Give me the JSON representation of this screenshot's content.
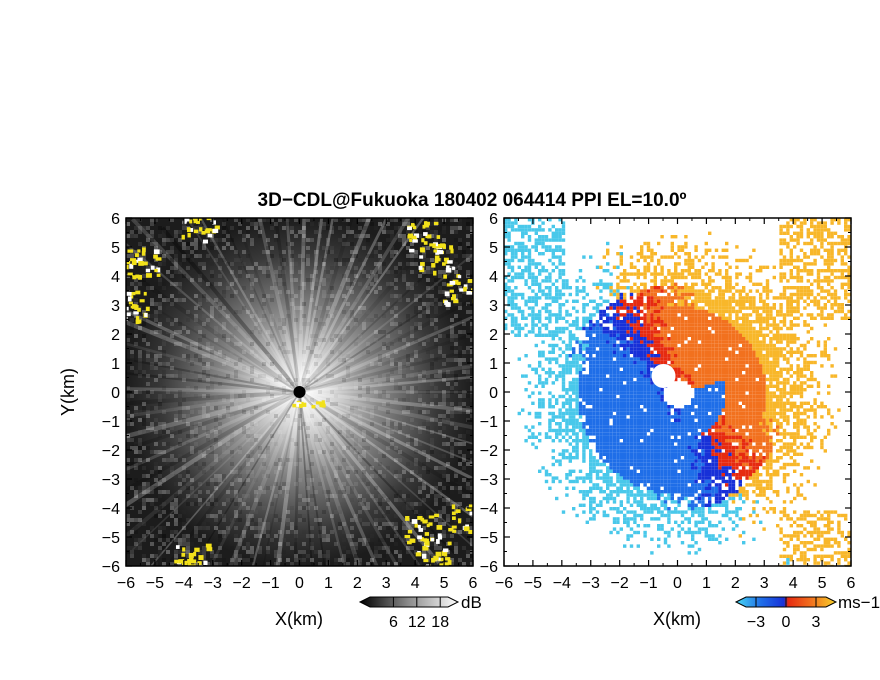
{
  "title": "3D−CDL@Fukuoka 180402 064414 PPI EL=10.0º",
  "colors": {
    "frame": "#000000",
    "echo_overlay": "#f2e11a",
    "radar_site": "#000000",
    "doppler_center": "#ffffff"
  },
  "chart_data": [
    {
      "type": "heatmap",
      "panel": "left",
      "quantity": "SNR",
      "xlabel": "X(km)",
      "ylabel": "Y(km)",
      "xlim": [
        -6,
        6
      ],
      "ylim": [
        -6,
        6
      ],
      "xticks": [
        "−6",
        "−5",
        "−4",
        "−3",
        "−2",
        "−1",
        "0",
        "1",
        "2",
        "3",
        "4",
        "5",
        "6"
      ],
      "yticks": [
        "6",
        "5",
        "4",
        "3",
        "2",
        "1",
        "0",
        "−1",
        "−2",
        "−3",
        "−4",
        "−5",
        "−6"
      ],
      "colormap": [
        "#000000",
        "#3a3a3a",
        "#777777",
        "#b4b4b4",
        "#f0f0f0"
      ],
      "colorbar": {
        "ticks": [
          "6",
          "12",
          "18"
        ],
        "tick_values": [
          6,
          12,
          18
        ],
        "range": [
          0,
          20
        ],
        "unit": "dB",
        "extend": "both"
      },
      "radar_site": [
        0,
        0
      ],
      "overlay_patches": [
        {
          "x": -5.5,
          "y": 4.5
        },
        {
          "x": -5.9,
          "y": 3.0
        },
        {
          "x": -3.5,
          "y": 5.7
        },
        {
          "x": 4.7,
          "y": 4.6
        },
        {
          "x": 5.5,
          "y": 3.6
        },
        {
          "x": 4.3,
          "y": 5.4
        },
        {
          "x": 4.2,
          "y": -4.7
        },
        {
          "x": 4.6,
          "y": -5.5
        },
        {
          "x": 5.7,
          "y": -4.3
        },
        {
          "x": -3.8,
          "y": -5.7
        },
        {
          "x": -0.1,
          "y": -0.4
        },
        {
          "x": 0.6,
          "y": -0.35
        }
      ]
    },
    {
      "type": "heatmap",
      "panel": "right",
      "quantity": "Doppler velocity",
      "xlabel": "X(km)",
      "xlim": [
        -6,
        6
      ],
      "ylim": [
        -6,
        6
      ],
      "xticks": [
        "−6",
        "−5",
        "−4",
        "−3",
        "−2",
        "−1",
        "0",
        "1",
        "2",
        "3",
        "4",
        "5",
        "6"
      ],
      "yticks": [
        "6",
        "5",
        "4",
        "3",
        "2",
        "1",
        "0",
        "−1",
        "−2",
        "−3",
        "−4",
        "−5",
        "−6"
      ],
      "colormap": [
        "#49c8ea",
        "#1f6ee8",
        "#1730d8",
        "#e62a10",
        "#f2711e",
        "#f8b72a"
      ],
      "colorbar": {
        "ticks": [
          "−3",
          "0",
          "3"
        ],
        "tick_values": [
          -3,
          0,
          3
        ],
        "range": [
          -4,
          4
        ],
        "unit": "ms−1",
        "extend": "both"
      }
    }
  ]
}
